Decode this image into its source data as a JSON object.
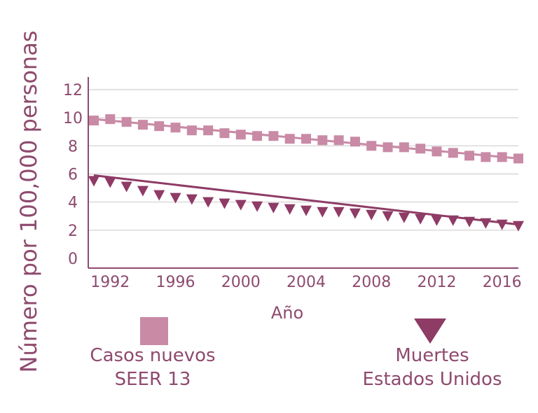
{
  "colors": {
    "text": "#8e4a6e",
    "axis": "#8e4a6e",
    "grid": "#cfcfcf",
    "series_new_cases": "#c98aa6",
    "series_deaths": "#8e3b66"
  },
  "chart_data": {
    "type": "line",
    "xlabel": "Año",
    "ylabel": "Número por 100,000  personas",
    "xlim": [
      1991,
      2017
    ],
    "ylim": [
      0,
      12
    ],
    "x_ticks": [
      "1992",
      "1996",
      "2000",
      "2004",
      "2008",
      "2012",
      "2016"
    ],
    "y_ticks": [
      "0",
      "2",
      "4",
      "6",
      "8",
      "10",
      "12"
    ],
    "grid": "horizontal",
    "legend_position": "bottom",
    "series": [
      {
        "name_lines": [
          "Casos nuevos",
          "SEER 13"
        ],
        "marker": "square",
        "x": [
          1991,
          1992,
          1993,
          1994,
          1995,
          1996,
          1997,
          1998,
          1999,
          2000,
          2001,
          2002,
          2003,
          2004,
          2005,
          2006,
          2007,
          2008,
          2009,
          2010,
          2011,
          2012,
          2013,
          2014,
          2015,
          2016,
          2017
        ],
        "values": [
          9.8,
          9.9,
          9.7,
          9.5,
          9.4,
          9.3,
          9.1,
          9.1,
          8.9,
          8.8,
          8.7,
          8.7,
          8.5,
          8.5,
          8.4,
          8.4,
          8.3,
          8.0,
          7.9,
          7.9,
          7.8,
          7.6,
          7.5,
          7.3,
          7.2,
          7.2,
          7.1
        ],
        "fit": [
          [
            1991,
            9.9
          ],
          [
            2017,
            7.1
          ]
        ]
      },
      {
        "name_lines": [
          "Muertes",
          "Estados Unidos"
        ],
        "marker": "triangle-down",
        "x": [
          1991,
          1992,
          1993,
          1994,
          1995,
          1996,
          1997,
          1998,
          1999,
          2000,
          2001,
          2002,
          2003,
          2004,
          2005,
          2006,
          2007,
          2008,
          2009,
          2010,
          2011,
          2012,
          2013,
          2014,
          2015,
          2016,
          2017
        ],
        "values": [
          5.5,
          5.4,
          5.1,
          4.8,
          4.5,
          4.3,
          4.2,
          4.0,
          3.9,
          3.8,
          3.7,
          3.6,
          3.5,
          3.4,
          3.3,
          3.3,
          3.2,
          3.1,
          3.0,
          2.9,
          2.8,
          2.7,
          2.7,
          2.6,
          2.5,
          2.4,
          2.3
        ],
        "fit": [
          [
            1991,
            5.9
          ],
          [
            2017,
            2.4
          ]
        ]
      }
    ]
  }
}
